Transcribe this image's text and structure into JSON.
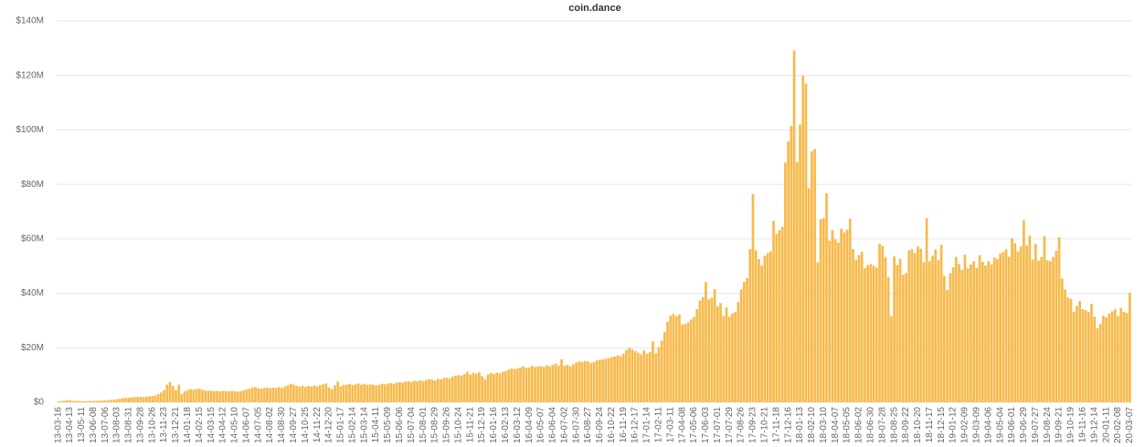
{
  "chart_data": {
    "type": "bar",
    "subtitle": "coin.dance",
    "categories": [
      "13-03-16",
      null,
      null,
      null,
      "13-04-13",
      null,
      null,
      null,
      "13-05-11",
      null,
      null,
      null,
      "13-06-08",
      null,
      null,
      null,
      "13-07-06",
      null,
      null,
      null,
      "13-08-03",
      null,
      null,
      null,
      "13-08-31",
      null,
      null,
      null,
      "13-09-28",
      null,
      null,
      null,
      "13-10-26",
      null,
      null,
      null,
      "13-11-23",
      null,
      null,
      null,
      "13-12-21",
      null,
      null,
      null,
      "14-01-18",
      null,
      null,
      null,
      "14-02-15",
      null,
      null,
      null,
      "14-03-15",
      null,
      null,
      null,
      "14-04-12",
      null,
      null,
      null,
      "14-05-10",
      null,
      null,
      null,
      "14-06-07",
      null,
      null,
      null,
      "14-07-05",
      null,
      null,
      null,
      "14-08-02",
      null,
      null,
      null,
      "14-08-30",
      null,
      null,
      null,
      "14-09-27",
      null,
      null,
      null,
      "14-10-25",
      null,
      null,
      null,
      "14-11-22",
      null,
      null,
      null,
      "14-12-20",
      null,
      null,
      null,
      "15-01-17",
      null,
      null,
      null,
      "15-02-14",
      null,
      null,
      null,
      "15-03-14",
      null,
      null,
      null,
      "15-04-11",
      null,
      null,
      null,
      "15-05-09",
      null,
      null,
      null,
      "15-06-06",
      null,
      null,
      null,
      "15-07-04",
      null,
      null,
      null,
      "15-08-01",
      null,
      null,
      null,
      "15-08-29",
      null,
      null,
      null,
      "15-09-26",
      null,
      null,
      null,
      "15-10-24",
      null,
      null,
      null,
      "15-11-21",
      null,
      null,
      null,
      "15-12-19",
      null,
      null,
      null,
      "16-01-16",
      null,
      null,
      null,
      "16-02-13",
      null,
      null,
      null,
      "16-03-12",
      null,
      null,
      null,
      "16-04-09",
      null,
      null,
      null,
      "16-05-07",
      null,
      null,
      null,
      "16-06-04",
      null,
      null,
      null,
      "16-07-02",
      null,
      null,
      null,
      "16-07-30",
      null,
      null,
      null,
      "16-08-27",
      null,
      null,
      null,
      "16-09-24",
      null,
      null,
      null,
      "16-10-22",
      null,
      null,
      null,
      "16-11-19",
      null,
      null,
      null,
      "16-12-17",
      null,
      null,
      null,
      "17-01-14",
      null,
      null,
      null,
      "17-02-11",
      null,
      null,
      null,
      "17-03-11",
      null,
      null,
      null,
      "17-04-08",
      null,
      null,
      null,
      "17-05-06",
      null,
      null,
      null,
      "17-06-03",
      null,
      null,
      null,
      "17-07-01",
      null,
      null,
      null,
      "17-07-29",
      null,
      null,
      null,
      "17-08-26",
      null,
      null,
      null,
      "17-09-23",
      null,
      null,
      null,
      "17-10-21",
      null,
      null,
      null,
      "17-11-18",
      null,
      null,
      null,
      "17-12-16",
      null,
      null,
      null,
      "18-01-13",
      null,
      null,
      null,
      "18-02-10",
      null,
      null,
      null,
      "18-03-10",
      null,
      null,
      null,
      "18-04-07",
      null,
      null,
      null,
      "18-05-05",
      null,
      null,
      null,
      "18-06-02",
      null,
      null,
      null,
      "18-06-30",
      null,
      null,
      null,
      "18-07-28",
      null,
      null,
      null,
      "18-08-25",
      null,
      null,
      null,
      "18-09-22",
      null,
      null,
      null,
      "18-10-20",
      null,
      null,
      null,
      "18-11-17",
      null,
      null,
      null,
      "18-12-15",
      null,
      null,
      null,
      "19-01-12",
      null,
      null,
      null,
      "19-02-09",
      null,
      null,
      null,
      "19-03-09",
      null,
      null,
      null,
      "19-04-06",
      null,
      null,
      null,
      "19-05-04",
      null,
      null,
      null,
      "19-06-01",
      null,
      null,
      null,
      "19-06-29",
      null,
      null,
      null,
      "19-07-27",
      null,
      null,
      null,
      "19-08-24",
      null,
      null,
      null,
      "19-09-21",
      null,
      null,
      null,
      "19-10-19",
      null,
      null,
      null,
      "19-11-16",
      null,
      null,
      null,
      "19-12-14",
      null,
      null,
      null,
      "20-01-11",
      null,
      null,
      null,
      "20-02-08",
      null,
      null,
      null,
      "20-03-07"
    ],
    "values": [
      0.3,
      0.4,
      0.6,
      0.8,
      0.7,
      0.5,
      0.5,
      0.5,
      0.4,
      0.4,
      0.4,
      0.5,
      0.5,
      0.5,
      0.6,
      0.6,
      0.7,
      0.8,
      0.9,
      1.0,
      1.1,
      1.3,
      1.5,
      1.6,
      1.7,
      1.8,
      1.9,
      2.0,
      2.0,
      1.9,
      2.1,
      2.2,
      2.3,
      2.5,
      3.0,
      3.6,
      4.5,
      6.5,
      7.5,
      6.0,
      4.5,
      6.5,
      3.0,
      4.0,
      4.5,
      4.8,
      4.6,
      4.9,
      5.0,
      4.6,
      4.3,
      4.2,
      4.3,
      4.1,
      4.2,
      4.0,
      4.2,
      4.1,
      4.0,
      4.2,
      4.0,
      3.9,
      4.1,
      4.4,
      4.7,
      5.0,
      5.4,
      5.6,
      5.2,
      5.0,
      5.3,
      5.4,
      5.2,
      5.4,
      5.3,
      5.6,
      5.3,
      5.8,
      6.2,
      6.8,
      6.5,
      6.0,
      5.8,
      6.1,
      5.6,
      6.0,
      5.8,
      6.2,
      5.8,
      6.3,
      6.6,
      6.9,
      5.4,
      4.8,
      6.2,
      7.6,
      5.8,
      6.4,
      6.5,
      6.8,
      6.3,
      6.6,
      6.9,
      6.5,
      6.8,
      6.4,
      6.6,
      6.5,
      6.2,
      6.4,
      6.8,
      6.6,
      6.9,
      7.0,
      6.8,
      7.2,
      7.4,
      7.2,
      7.6,
      7.8,
      7.5,
      7.9,
      7.7,
      8.0,
      7.8,
      8.2,
      8.5,
      8.3,
      8.0,
      8.6,
      8.4,
      8.9,
      9.0,
      8.8,
      9.4,
      9.8,
      10.0,
      9.8,
      10.4,
      11.2,
      10.2,
      10.8,
      10.5,
      11.0,
      9.6,
      8.4,
      10.2,
      10.8,
      10.4,
      10.9,
      10.6,
      11.2,
      11.4,
      12.0,
      12.5,
      12.2,
      12.4,
      12.8,
      13.2,
      12.6,
      12.8,
      13.4,
      12.9,
      13.1,
      13.3,
      13.0,
      13.6,
      13.2,
      13.8,
      14.2,
      13.5,
      15.8,
      13.4,
      13.8,
      13.2,
      14.0,
      14.6,
      15.0,
      14.8,
      15.2,
      15.0,
      14.4,
      14.8,
      15.4,
      15.6,
      15.8,
      16.0,
      16.2,
      16.6,
      16.8,
      17.2,
      17.0,
      17.8,
      19.2,
      20.0,
      19.4,
      18.8,
      18.2,
      17.6,
      19.0,
      17.8,
      18.4,
      22.4,
      18.0,
      20.2,
      22.6,
      25.8,
      29.6,
      31.8,
      32.4,
      31.6,
      32.2,
      28.6,
      28.8,
      29.4,
      30.4,
      31.4,
      34.2,
      37.4,
      38.6,
      44.2,
      37.8,
      38.4,
      41.6,
      35.2,
      36.4,
      31.6,
      34.8,
      31.4,
      32.6,
      33.2,
      36.8,
      41.4,
      44.2,
      45.6,
      56.2,
      76.4,
      55.8,
      52.6,
      50.2,
      53.8,
      54.8,
      55.4,
      66.6,
      61.8,
      63.2,
      64.4,
      88.0,
      95.8,
      101.4,
      129.2,
      88.2,
      102.0,
      120.0,
      117.0,
      78.6,
      92.2,
      93.0,
      51.4,
      67.2,
      67.6,
      76.8,
      59.4,
      63.2,
      59.8,
      58.6,
      63.8,
      62.4,
      63.4,
      67.4,
      56.2,
      52.4,
      54.0,
      55.2,
      49.2,
      50.4,
      50.8,
      50.2,
      49.4,
      58.2,
      57.4,
      53.2,
      46.0,
      31.6,
      53.6,
      50.4,
      52.6,
      46.8,
      47.4,
      55.8,
      56.2,
      54.8,
      57.2,
      56.4,
      51.4,
      67.6,
      51.8,
      53.8,
      56.2,
      52.2,
      57.8,
      46.4,
      41.2,
      47.4,
      49.6,
      53.4,
      50.8,
      48.6,
      54.2,
      49.2,
      50.6,
      51.8,
      49.4,
      54.0,
      51.6,
      50.2,
      51.8,
      50.6,
      53.2,
      52.6,
      54.6,
      55.2,
      56.2,
      53.4,
      60.2,
      58.4,
      55.4,
      57.2,
      66.8,
      57.6,
      61.2,
      52.4,
      58.2,
      52.0,
      53.4,
      61.0,
      52.2,
      51.8,
      53.4,
      55.6,
      60.6,
      45.4,
      41.4,
      38.4,
      38.0,
      33.2,
      35.4,
      37.2,
      34.2,
      33.8,
      33.2,
      36.2,
      31.4,
      27.2,
      28.8,
      31.8,
      31.2,
      32.6,
      33.4,
      34.2,
      31.6,
      34.6,
      33.2,
      32.8,
      40.2
    ],
    "color": "#f7ba4d",
    "ylim": [
      0,
      140
    ],
    "yticks": [
      {
        "value": 0,
        "label": "$0"
      },
      {
        "value": 20,
        "label": "$20M"
      },
      {
        "value": 40,
        "label": "$40M"
      },
      {
        "value": 60,
        "label": "$60M"
      },
      {
        "value": 80,
        "label": "$80M"
      },
      {
        "value": 100,
        "label": "$100M"
      },
      {
        "value": 120,
        "label": "$120M"
      },
      {
        "value": 140,
        "label": "$140M"
      }
    ],
    "grid": true
  }
}
